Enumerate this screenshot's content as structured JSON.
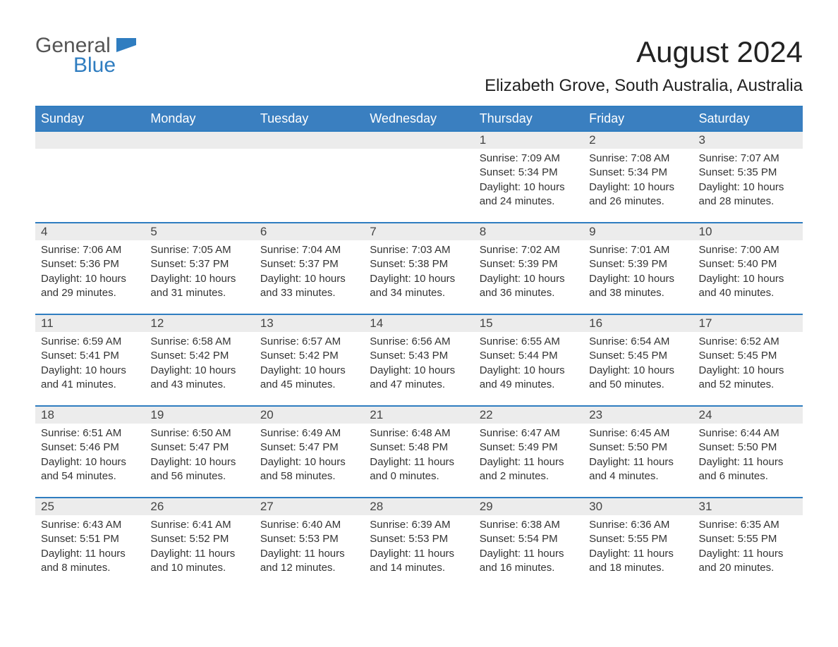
{
  "brand": {
    "name_part1": "General",
    "name_part2": "Blue"
  },
  "title": "August 2024",
  "location": "Elizabeth Grove, South Australia, Australia",
  "weekdays": [
    "Sunday",
    "Monday",
    "Tuesday",
    "Wednesday",
    "Thursday",
    "Friday",
    "Saturday"
  ],
  "colors": {
    "header_bg": "#3a7fc0",
    "accent": "#2f7dc0",
    "daynum_bg": "#ececec",
    "text": "#333333"
  },
  "calendar": {
    "start_weekday_index": 4,
    "days": [
      {
        "n": 1,
        "sunrise": "7:09 AM",
        "sunset": "5:34 PM",
        "daylight": "10 hours and 24 minutes."
      },
      {
        "n": 2,
        "sunrise": "7:08 AM",
        "sunset": "5:34 PM",
        "daylight": "10 hours and 26 minutes."
      },
      {
        "n": 3,
        "sunrise": "7:07 AM",
        "sunset": "5:35 PM",
        "daylight": "10 hours and 28 minutes."
      },
      {
        "n": 4,
        "sunrise": "7:06 AM",
        "sunset": "5:36 PM",
        "daylight": "10 hours and 29 minutes."
      },
      {
        "n": 5,
        "sunrise": "7:05 AM",
        "sunset": "5:37 PM",
        "daylight": "10 hours and 31 minutes."
      },
      {
        "n": 6,
        "sunrise": "7:04 AM",
        "sunset": "5:37 PM",
        "daylight": "10 hours and 33 minutes."
      },
      {
        "n": 7,
        "sunrise": "7:03 AM",
        "sunset": "5:38 PM",
        "daylight": "10 hours and 34 minutes."
      },
      {
        "n": 8,
        "sunrise": "7:02 AM",
        "sunset": "5:39 PM",
        "daylight": "10 hours and 36 minutes."
      },
      {
        "n": 9,
        "sunrise": "7:01 AM",
        "sunset": "5:39 PM",
        "daylight": "10 hours and 38 minutes."
      },
      {
        "n": 10,
        "sunrise": "7:00 AM",
        "sunset": "5:40 PM",
        "daylight": "10 hours and 40 minutes."
      },
      {
        "n": 11,
        "sunrise": "6:59 AM",
        "sunset": "5:41 PM",
        "daylight": "10 hours and 41 minutes."
      },
      {
        "n": 12,
        "sunrise": "6:58 AM",
        "sunset": "5:42 PM",
        "daylight": "10 hours and 43 minutes."
      },
      {
        "n": 13,
        "sunrise": "6:57 AM",
        "sunset": "5:42 PM",
        "daylight": "10 hours and 45 minutes."
      },
      {
        "n": 14,
        "sunrise": "6:56 AM",
        "sunset": "5:43 PM",
        "daylight": "10 hours and 47 minutes."
      },
      {
        "n": 15,
        "sunrise": "6:55 AM",
        "sunset": "5:44 PM",
        "daylight": "10 hours and 49 minutes."
      },
      {
        "n": 16,
        "sunrise": "6:54 AM",
        "sunset": "5:45 PM",
        "daylight": "10 hours and 50 minutes."
      },
      {
        "n": 17,
        "sunrise": "6:52 AM",
        "sunset": "5:45 PM",
        "daylight": "10 hours and 52 minutes."
      },
      {
        "n": 18,
        "sunrise": "6:51 AM",
        "sunset": "5:46 PM",
        "daylight": "10 hours and 54 minutes."
      },
      {
        "n": 19,
        "sunrise": "6:50 AM",
        "sunset": "5:47 PM",
        "daylight": "10 hours and 56 minutes."
      },
      {
        "n": 20,
        "sunrise": "6:49 AM",
        "sunset": "5:47 PM",
        "daylight": "10 hours and 58 minutes."
      },
      {
        "n": 21,
        "sunrise": "6:48 AM",
        "sunset": "5:48 PM",
        "daylight": "11 hours and 0 minutes."
      },
      {
        "n": 22,
        "sunrise": "6:47 AM",
        "sunset": "5:49 PM",
        "daylight": "11 hours and 2 minutes."
      },
      {
        "n": 23,
        "sunrise": "6:45 AM",
        "sunset": "5:50 PM",
        "daylight": "11 hours and 4 minutes."
      },
      {
        "n": 24,
        "sunrise": "6:44 AM",
        "sunset": "5:50 PM",
        "daylight": "11 hours and 6 minutes."
      },
      {
        "n": 25,
        "sunrise": "6:43 AM",
        "sunset": "5:51 PM",
        "daylight": "11 hours and 8 minutes."
      },
      {
        "n": 26,
        "sunrise": "6:41 AM",
        "sunset": "5:52 PM",
        "daylight": "11 hours and 10 minutes."
      },
      {
        "n": 27,
        "sunrise": "6:40 AM",
        "sunset": "5:53 PM",
        "daylight": "11 hours and 12 minutes."
      },
      {
        "n": 28,
        "sunrise": "6:39 AM",
        "sunset": "5:53 PM",
        "daylight": "11 hours and 14 minutes."
      },
      {
        "n": 29,
        "sunrise": "6:38 AM",
        "sunset": "5:54 PM",
        "daylight": "11 hours and 16 minutes."
      },
      {
        "n": 30,
        "sunrise": "6:36 AM",
        "sunset": "5:55 PM",
        "daylight": "11 hours and 18 minutes."
      },
      {
        "n": 31,
        "sunrise": "6:35 AM",
        "sunset": "5:55 PM",
        "daylight": "11 hours and 20 minutes."
      }
    ]
  },
  "labels": {
    "sunrise": "Sunrise:",
    "sunset": "Sunset:",
    "daylight": "Daylight:"
  }
}
